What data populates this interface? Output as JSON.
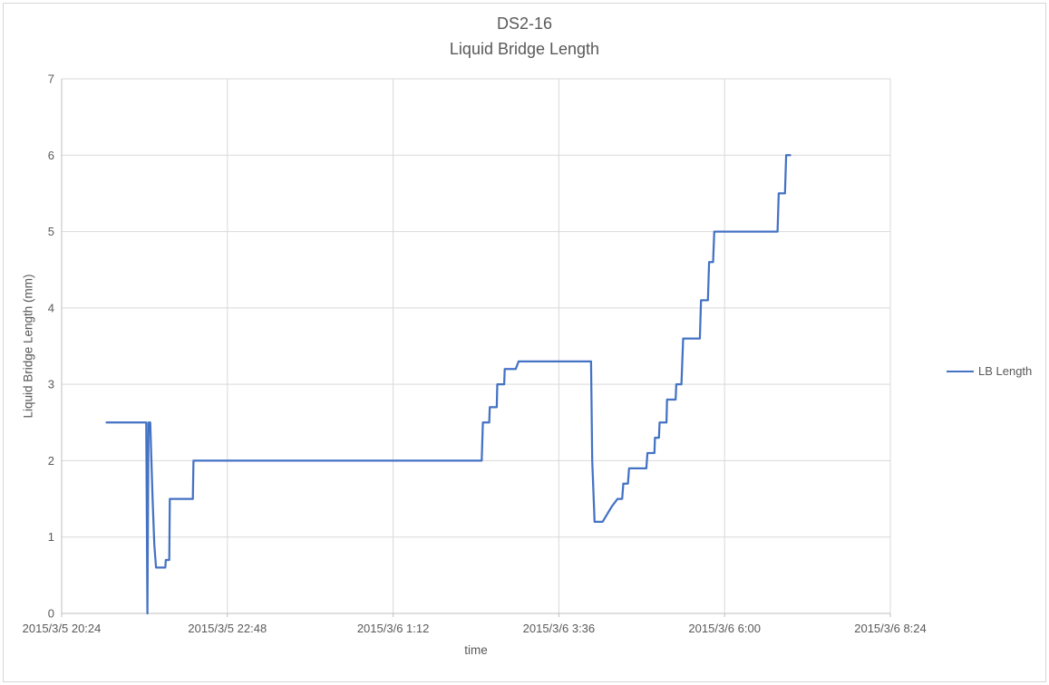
{
  "chart": {
    "title": "DS2-16",
    "subtitle": "Liquid Bridge Length",
    "x_axis_title": "time",
    "y_axis_title": "Liquid Bridge Length (mm)",
    "legend_label": "LB Length"
  },
  "colors": {
    "series": "#4472C4",
    "gridline": "#D9D9D9",
    "axis_line": "#BFBFBF",
    "text": "#595959"
  },
  "chart_data": {
    "type": "line",
    "title": "DS2-16 Liquid Bridge Length",
    "xlabel": "time",
    "ylabel": "Liquid Bridge Length (mm)",
    "x_unit": "minutes after 2015/3/5 20:24",
    "xlim": [
      0,
      720
    ],
    "ylim": [
      0,
      7
    ],
    "x_tick_interval_minutes": 144,
    "x_tick_labels": [
      "2015/3/5 20:24",
      "2015/3/5 22:48",
      "2015/3/6 1:12",
      "2015/3/6 3:36",
      "2015/3/6 6:00",
      "2015/3/6 8:24"
    ],
    "y_ticks": [
      0,
      1,
      2,
      3,
      4,
      5,
      6,
      7
    ],
    "grid": true,
    "legend_position": "right",
    "series": [
      {
        "name": "LB Length",
        "color": "#4472C4",
        "points": [
          [
            39,
            2.5
          ],
          [
            73.5,
            2.5
          ],
          [
            74.5,
            0
          ],
          [
            75.5,
            2.5
          ],
          [
            77,
            2.5
          ],
          [
            79,
            1.5
          ],
          [
            80.5,
            0.9
          ],
          [
            82,
            0.6
          ],
          [
            90,
            0.6
          ],
          [
            90.5,
            0.7
          ],
          [
            93.5,
            0.7
          ],
          [
            94,
            1.5
          ],
          [
            114,
            1.5
          ],
          [
            114.5,
            2
          ],
          [
            365,
            2
          ],
          [
            366,
            2.5
          ],
          [
            371.5,
            2.5
          ],
          [
            372,
            2.7
          ],
          [
            378,
            2.7
          ],
          [
            378.5,
            3
          ],
          [
            384.5,
            3
          ],
          [
            385,
            3.2
          ],
          [
            394.5,
            3.2
          ],
          [
            397,
            3.3
          ],
          [
            460,
            3.3
          ],
          [
            461,
            2
          ],
          [
            463,
            1.2
          ],
          [
            470,
            1.2
          ],
          [
            474,
            1.3
          ],
          [
            478,
            1.4
          ],
          [
            483,
            1.5
          ],
          [
            487,
            1.5
          ],
          [
            488,
            1.7
          ],
          [
            492,
            1.7
          ],
          [
            493,
            1.9
          ],
          [
            508,
            1.9
          ],
          [
            509,
            2.1
          ],
          [
            515,
            2.1
          ],
          [
            515.5,
            2.3
          ],
          [
            519,
            2.3
          ],
          [
            519.5,
            2.5
          ],
          [
            525.5,
            2.5
          ],
          [
            526,
            2.8
          ],
          [
            533.5,
            2.8
          ],
          [
            534,
            3
          ],
          [
            538.5,
            3
          ],
          [
            540,
            3.6
          ],
          [
            554.5,
            3.6
          ],
          [
            555.5,
            4.1
          ],
          [
            561.5,
            4.1
          ],
          [
            562.5,
            4.6
          ],
          [
            566,
            4.6
          ],
          [
            567,
            5
          ],
          [
            622,
            5
          ],
          [
            623,
            5.5
          ],
          [
            628.5,
            5.5
          ],
          [
            629.5,
            6
          ],
          [
            633,
            6
          ]
        ]
      }
    ]
  }
}
